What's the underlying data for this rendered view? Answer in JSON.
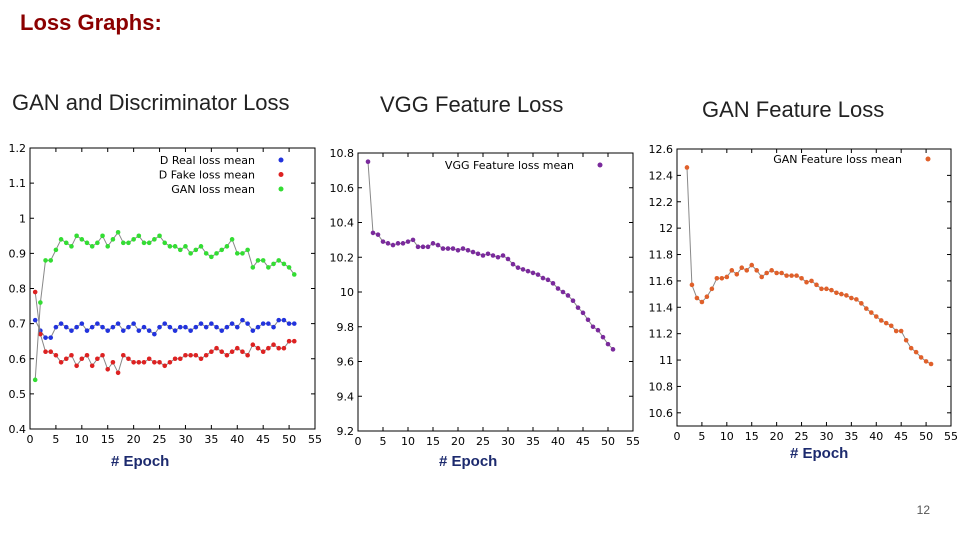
{
  "slide": {
    "title": "Loss Graphs",
    "title_suffix": ":",
    "page_number": "12"
  },
  "chart_data": [
    {
      "type": "line",
      "heading": "GAN and Discriminator Loss",
      "xlabel": "# Epoch",
      "xlim": [
        0,
        55
      ],
      "ylim": [
        0.4,
        1.2
      ],
      "xticks": [
        0,
        5,
        10,
        15,
        20,
        25,
        30,
        35,
        40,
        45,
        50,
        55
      ],
      "yticks": [
        0.4,
        0.5,
        0.6,
        0.7,
        0.8,
        0.9,
        1.0,
        1.1,
        1.2
      ],
      "ytick_labels": [
        "0.4",
        "0.5",
        "0.6",
        "0.7",
        "0.8",
        "0.9",
        "1",
        "1.1",
        "1.2"
      ],
      "legend_position": "top-right",
      "grid": false,
      "x": [
        1,
        2,
        3,
        4,
        5,
        6,
        7,
        8,
        9,
        10,
        11,
        12,
        13,
        14,
        15,
        16,
        17,
        18,
        19,
        20,
        21,
        22,
        23,
        24,
        25,
        26,
        27,
        28,
        29,
        30,
        31,
        32,
        33,
        34,
        35,
        36,
        37,
        38,
        39,
        40,
        41,
        42,
        43,
        44,
        45,
        46,
        47,
        48,
        49,
        50,
        51
      ],
      "series": [
        {
          "name": "D Real loss mean",
          "color": "#2233dd",
          "values": [
            0.71,
            0.68,
            0.66,
            0.66,
            0.69,
            0.7,
            0.69,
            0.68,
            0.69,
            0.7,
            0.68,
            0.69,
            0.7,
            0.69,
            0.68,
            0.69,
            0.7,
            0.68,
            0.69,
            0.7,
            0.68,
            0.69,
            0.68,
            0.67,
            0.69,
            0.7,
            0.69,
            0.68,
            0.69,
            0.69,
            0.68,
            0.69,
            0.7,
            0.69,
            0.7,
            0.69,
            0.68,
            0.69,
            0.7,
            0.69,
            0.71,
            0.7,
            0.68,
            0.69,
            0.7,
            0.7,
            0.69,
            0.71,
            0.71,
            0.7,
            0.7
          ]
        },
        {
          "name": "D Fake loss mean",
          "color": "#dd2222",
          "values": [
            0.79,
            0.67,
            0.62,
            0.62,
            0.61,
            0.59,
            0.6,
            0.61,
            0.58,
            0.6,
            0.61,
            0.58,
            0.6,
            0.61,
            0.57,
            0.59,
            0.56,
            0.61,
            0.6,
            0.59,
            0.59,
            0.59,
            0.6,
            0.59,
            0.59,
            0.58,
            0.59,
            0.6,
            0.6,
            0.61,
            0.61,
            0.61,
            0.6,
            0.61,
            0.62,
            0.63,
            0.62,
            0.61,
            0.62,
            0.63,
            0.62,
            0.61,
            0.64,
            0.63,
            0.62,
            0.63,
            0.64,
            0.63,
            0.63,
            0.65,
            0.65
          ]
        },
        {
          "name": "GAN loss mean",
          "color": "#33dd33",
          "values": [
            0.54,
            0.76,
            0.88,
            0.88,
            0.91,
            0.94,
            0.93,
            0.92,
            0.95,
            0.94,
            0.93,
            0.92,
            0.93,
            0.95,
            0.92,
            0.94,
            0.96,
            0.93,
            0.93,
            0.94,
            0.95,
            0.93,
            0.93,
            0.94,
            0.95,
            0.93,
            0.92,
            0.92,
            0.91,
            0.92,
            0.9,
            0.91,
            0.92,
            0.9,
            0.89,
            0.9,
            0.91,
            0.92,
            0.94,
            0.9,
            0.9,
            0.91,
            0.86,
            0.88,
            0.88,
            0.86,
            0.87,
            0.88,
            0.87,
            0.86,
            0.84
          ]
        }
      ]
    },
    {
      "type": "line",
      "heading": "VGG Feature  Loss",
      "xlabel": "# Epoch",
      "xlim": [
        0,
        55
      ],
      "ylim": [
        9.2,
        10.8
      ],
      "xticks": [
        0,
        5,
        10,
        15,
        20,
        25,
        30,
        35,
        40,
        45,
        50,
        55
      ],
      "yticks": [
        9.2,
        9.4,
        9.6,
        9.8,
        10.0,
        10.2,
        10.4,
        10.6,
        10.8
      ],
      "ytick_labels": [
        "9.2",
        "9.4",
        "9.6",
        "9.8",
        "10",
        "10.2",
        "10.4",
        "10.6",
        "10.8"
      ],
      "legend_position": "top-right",
      "grid": false,
      "x": [
        2,
        3,
        4,
        5,
        6,
        7,
        8,
        9,
        10,
        11,
        12,
        13,
        14,
        15,
        16,
        17,
        18,
        19,
        20,
        21,
        22,
        23,
        24,
        25,
        26,
        27,
        28,
        29,
        30,
        31,
        32,
        33,
        34,
        35,
        36,
        37,
        38,
        39,
        40,
        41,
        42,
        43,
        44,
        45,
        46,
        47,
        48,
        49,
        50,
        51
      ],
      "series": [
        {
          "name": "VGG Feature loss mean",
          "color": "#7a2a9c",
          "values": [
            10.75,
            10.34,
            10.33,
            10.29,
            10.28,
            10.27,
            10.28,
            10.28,
            10.29,
            10.3,
            10.26,
            10.26,
            10.26,
            10.28,
            10.27,
            10.25,
            10.25,
            10.25,
            10.24,
            10.25,
            10.24,
            10.23,
            10.22,
            10.21,
            10.22,
            10.21,
            10.2,
            10.21,
            10.19,
            10.16,
            10.14,
            10.13,
            10.12,
            10.11,
            10.1,
            10.08,
            10.07,
            10.05,
            10.02,
            10.0,
            9.98,
            9.95,
            9.91,
            9.88,
            9.84,
            9.8,
            9.78,
            9.74,
            9.7,
            9.67
          ]
        }
      ]
    },
    {
      "type": "line",
      "heading": "GAN Feature  Loss",
      "xlabel": "# Epoch",
      "xlim": [
        0,
        55
      ],
      "ylim": [
        10.5,
        12.6
      ],
      "xticks": [
        0,
        5,
        10,
        15,
        20,
        25,
        30,
        35,
        40,
        45,
        50,
        55
      ],
      "yticks": [
        10.6,
        10.8,
        11.0,
        11.2,
        11.4,
        11.6,
        11.8,
        12.0,
        12.2,
        12.4,
        12.6
      ],
      "ytick_labels": [
        "10.6",
        "10.8",
        "11",
        "11.2",
        "11.4",
        "11.6",
        "11.8",
        "12",
        "12.2",
        "12.4",
        "12.6"
      ],
      "legend_position": "top-right",
      "grid": false,
      "x": [
        2,
        3,
        4,
        5,
        6,
        7,
        8,
        9,
        10,
        11,
        12,
        13,
        14,
        15,
        16,
        17,
        18,
        19,
        20,
        21,
        22,
        23,
        24,
        25,
        26,
        27,
        28,
        29,
        30,
        31,
        32,
        33,
        34,
        35,
        36,
        37,
        38,
        39,
        40,
        41,
        42,
        43,
        44,
        45,
        46,
        47,
        48,
        49,
        50,
        51
      ],
      "series": [
        {
          "name": "GAN Feature loss mean",
          "color": "#e0602a",
          "values": [
            12.46,
            11.57,
            11.47,
            11.44,
            11.48,
            11.54,
            11.62,
            11.62,
            11.63,
            11.68,
            11.65,
            11.7,
            11.68,
            11.72,
            11.68,
            11.63,
            11.66,
            11.68,
            11.66,
            11.66,
            11.64,
            11.64,
            11.64,
            11.62,
            11.59,
            11.6,
            11.57,
            11.54,
            11.54,
            11.53,
            11.51,
            11.5,
            11.49,
            11.47,
            11.46,
            11.43,
            11.39,
            11.36,
            11.33,
            11.3,
            11.28,
            11.26,
            11.22,
            11.22,
            11.15,
            11.09,
            11.06,
            11.02,
            10.99,
            10.97
          ]
        }
      ]
    }
  ]
}
